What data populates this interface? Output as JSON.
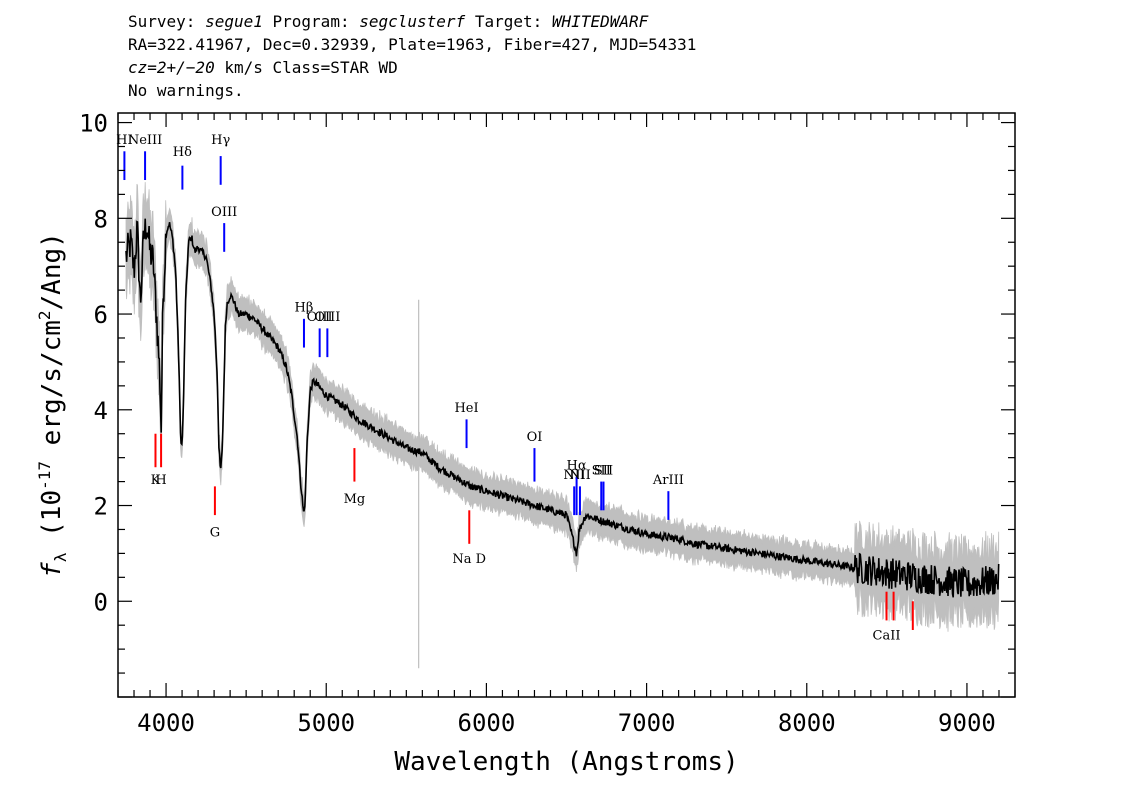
{
  "header": {
    "line1": {
      "survey_label": "Survey:",
      "survey": "segue1",
      "program_label": "Program:",
      "program": "segclusterf",
      "target_label": "Target:",
      "target": "WHITEDWARF"
    },
    "line2": "RA=322.41967, Dec=0.32939, Plate=1963, Fiber=427, MJD=54331",
    "line3": {
      "cz": "cz=2+/−20",
      "rest": "km/s Class=STAR WD"
    },
    "line4": "No warnings."
  },
  "chart_data": {
    "type": "line",
    "xlabel": "Wavelength (Angstroms)",
    "ylabel": "f_λ (10^-17 erg/s/cm^2/Ang)",
    "xlim": [
      3700,
      9300
    ],
    "ylim": [
      -2,
      10.2
    ],
    "xticks": [
      4000,
      5000,
      6000,
      7000,
      8000,
      9000
    ],
    "yticks": [
      0,
      2,
      4,
      6,
      8,
      10
    ],
    "series": [
      {
        "color": "#000000",
        "x": [
          3750,
          3780,
          3800,
          3820,
          3840,
          3860,
          3880,
          3900,
          3920,
          3940,
          3960,
          3970,
          3980,
          4000,
          4020,
          4040,
          4060,
          4080,
          4090,
          4100,
          4110,
          4120,
          4140,
          4160,
          4180,
          4200,
          4220,
          4250,
          4280,
          4300,
          4320,
          4330,
          4340,
          4350,
          4360,
          4370,
          4380,
          4400,
          4420,
          4450,
          4500,
          4550,
          4600,
          4650,
          4700,
          4750,
          4780,
          4800,
          4820,
          4840,
          4860,
          4870,
          4880,
          4900,
          4920,
          4950,
          5000,
          5100,
          5200,
          5300,
          5400,
          5500,
          5600,
          5700,
          5800,
          5900,
          6000,
          6100,
          6200,
          6300,
          6400,
          6500,
          6540,
          6563,
          6580,
          6620,
          6700,
          6800,
          6900,
          7000,
          7100,
          7200,
          7300,
          7400,
          7500,
          7600,
          7700,
          7800,
          7900,
          8000,
          8100,
          8200,
          8300,
          8400,
          8500,
          8600,
          8700,
          8800,
          8900,
          9000,
          9100,
          9200
        ],
        "y": [
          7.2,
          7.5,
          6.9,
          7.8,
          6.2,
          7.6,
          7.9,
          7.3,
          7.1,
          6.0,
          4.8,
          3.6,
          6.2,
          7.7,
          7.9,
          7.6,
          6.9,
          5.0,
          3.5,
          3.2,
          4.3,
          6.1,
          7.5,
          7.6,
          7.3,
          7.4,
          7.3,
          7.2,
          6.6,
          6.0,
          4.7,
          3.2,
          2.7,
          3.1,
          4.3,
          5.7,
          6.2,
          6.4,
          6.3,
          6.0,
          6.0,
          5.9,
          5.7,
          5.5,
          5.3,
          4.9,
          4.4,
          3.9,
          3.4,
          2.5,
          1.8,
          2.2,
          3.3,
          4.4,
          4.6,
          4.5,
          4.3,
          4.1,
          3.8,
          3.6,
          3.4,
          3.2,
          3.1,
          2.8,
          2.6,
          2.4,
          2.3,
          2.2,
          2.1,
          2.0,
          1.9,
          1.8,
          1.3,
          1.0,
          1.5,
          1.8,
          1.7,
          1.6,
          1.5,
          1.4,
          1.35,
          1.3,
          1.2,
          1.15,
          1.1,
          1.05,
          1.0,
          0.95,
          0.9,
          0.85,
          0.8,
          0.75,
          0.7,
          0.65,
          0.6,
          0.55,
          0.5,
          0.45,
          0.4,
          0.35,
          0.4,
          0.45
        ]
      }
    ],
    "error_band_color": "#bfbfbf",
    "line_markers": [
      {
        "label": "HI",
        "x": 3740,
        "color": "#0000ff",
        "y0": 8.8,
        "y1": 9.4,
        "label_y": 9.55,
        "side": "top"
      },
      {
        "label": "NeIII",
        "x": 3869,
        "color": "#0000ff",
        "y0": 8.8,
        "y1": 9.4,
        "label_y": 9.55,
        "side": "top"
      },
      {
        "label": "Hδ",
        "x": 4102,
        "color": "#0000ff",
        "y0": 8.6,
        "y1": 9.1,
        "label_y": 9.3,
        "side": "top"
      },
      {
        "label": "Hγ",
        "x": 4341,
        "color": "#0000ff",
        "y0": 8.7,
        "y1": 9.3,
        "label_y": 9.55,
        "side": "top"
      },
      {
        "label": "OIII",
        "x": 4363,
        "color": "#0000ff",
        "y0": 7.3,
        "y1": 7.9,
        "label_y": 8.05,
        "side": "top"
      },
      {
        "label": "Hβ",
        "x": 4861,
        "color": "#0000ff",
        "y0": 5.3,
        "y1": 5.9,
        "label_y": 6.05,
        "side": "top"
      },
      {
        "label": "OIII",
        "x": 4959,
        "color": "#0000ff",
        "y0": 5.1,
        "y1": 5.7,
        "label_y": 5.85,
        "side": "top"
      },
      {
        "label": "OIII",
        "x": 5007,
        "color": "#0000ff",
        "y0": 5.1,
        "y1": 5.7,
        "label_y": 5.85,
        "side": "top"
      },
      {
        "label": "HeI",
        "x": 5876,
        "color": "#0000ff",
        "y0": 3.2,
        "y1": 3.8,
        "label_y": 3.95,
        "side": "top"
      },
      {
        "label": "OI",
        "x": 6300,
        "color": "#0000ff",
        "y0": 2.5,
        "y1": 3.2,
        "label_y": 3.35,
        "side": "top"
      },
      {
        "label": "NII",
        "x": 6548,
        "color": "#0000ff",
        "y0": 1.8,
        "y1": 2.4,
        "label_y": 2.55,
        "side": "top"
      },
      {
        "label": "Hα",
        "x": 6563,
        "color": "#0000ff",
        "y0": 1.8,
        "y1": 2.6,
        "label_y": 2.75,
        "side": "top"
      },
      {
        "label": "NII",
        "x": 6584,
        "color": "#0000ff",
        "y0": 1.8,
        "y1": 2.4,
        "label_y": 2.55,
        "side": "top"
      },
      {
        "label": "SII",
        "x": 6717,
        "color": "#0000ff",
        "y0": 1.9,
        "y1": 2.5,
        "label_y": 2.65,
        "side": "top"
      },
      {
        "label": "SII",
        "x": 6731,
        "color": "#0000ff",
        "y0": 1.9,
        "y1": 2.5,
        "label_y": 2.65,
        "side": "top"
      },
      {
        "label": "ArIII",
        "x": 7136,
        "color": "#0000ff",
        "y0": 1.7,
        "y1": 2.3,
        "label_y": 2.45,
        "side": "top"
      },
      {
        "label": "K",
        "x": 3934,
        "color": "#ff0000",
        "y0": 2.8,
        "y1": 3.5,
        "label_y": 2.45,
        "side": "bottom"
      },
      {
        "label": "H",
        "x": 3969,
        "color": "#ff0000",
        "y0": 2.8,
        "y1": 3.5,
        "label_y": 2.45,
        "side": "bottom"
      },
      {
        "label": "G",
        "x": 4305,
        "color": "#ff0000",
        "y0": 1.8,
        "y1": 2.4,
        "label_y": 1.35,
        "side": "bottom"
      },
      {
        "label": "Mg",
        "x": 5176,
        "color": "#ff0000",
        "y0": 2.5,
        "y1": 3.2,
        "label_y": 2.05,
        "side": "bottom"
      },
      {
        "label": "Na D",
        "x": 5893,
        "color": "#ff0000",
        "y0": 1.2,
        "y1": 1.9,
        "label_y": 0.8,
        "side": "bottom"
      },
      {
        "label": "CaII",
        "x": 8498,
        "color": "#ff0000",
        "y0": -0.4,
        "y1": 0.2,
        "label_y": -0.8,
        "side": "bottom"
      },
      {
        "label": "",
        "x": 8542,
        "color": "#ff0000",
        "y0": -0.4,
        "y1": 0.2,
        "label_y": -0.8,
        "side": "bottom"
      },
      {
        "label": "",
        "x": 8662,
        "color": "#ff0000",
        "y0": -0.6,
        "y1": 0.0,
        "label_y": -0.8,
        "side": "bottom"
      }
    ]
  }
}
